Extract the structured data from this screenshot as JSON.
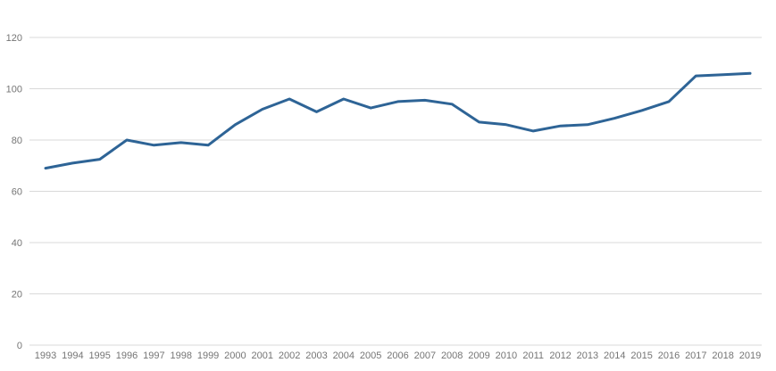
{
  "chart": {
    "background": "#ffffff",
    "line_color": "#2e6496",
    "grid_color": "#d9d9d9",
    "label_color": "#757575"
  },
  "chart_data": {
    "type": "line",
    "title": "",
    "xlabel": "",
    "ylabel": "",
    "categories": [
      "1993",
      "1994",
      "1995",
      "1996",
      "1997",
      "1998",
      "1999",
      "2000",
      "2001",
      "2002",
      "2003",
      "2004",
      "2005",
      "2006",
      "2007",
      "2008",
      "2009",
      "2010",
      "2011",
      "2012",
      "2013",
      "2014",
      "2015",
      "2016",
      "2017",
      "2018",
      "2019"
    ],
    "values": [
      69,
      71,
      72.5,
      80,
      78,
      79,
      78,
      86,
      92,
      96,
      91,
      96,
      92.5,
      95,
      95.5,
      94,
      87,
      86,
      83.5,
      85.5,
      86,
      88.5,
      91.5,
      95,
      105,
      105.5,
      106
    ],
    "ylim": [
      0,
      120
    ],
    "yticks": [
      0,
      20,
      40,
      60,
      80,
      100,
      120
    ],
    "grid": "horizontal",
    "legend": "none",
    "markers": "none"
  }
}
